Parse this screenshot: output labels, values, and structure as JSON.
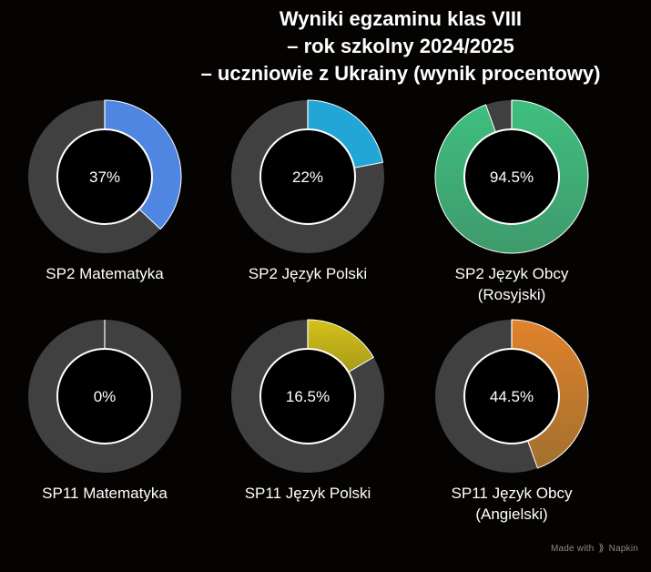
{
  "title": {
    "line1": "Wyniki egzaminu klas VIII",
    "line2": "– rok szkolny 2024/2025",
    "line3": "– uczniowie z Ukrainy (wynik procentowy)"
  },
  "chart_data": {
    "type": "donut",
    "title": "Wyniki egzaminu klas VIII – rok szkolny 2024/2025 – uczniowie z Ukrainy (wynik procentowy)",
    "unit": "%",
    "max": 100,
    "track_color": "#404040",
    "charts": [
      {
        "label_line1": "SP2 Matematyka",
        "label_line2": "",
        "value": 37,
        "value_text": "37%",
        "color": "#4f86e2",
        "color_end": "#4f86e2"
      },
      {
        "label_line1": "SP2 Język Polski",
        "label_line2": "",
        "value": 22,
        "value_text": "22%",
        "color": "#22a6d6",
        "color_end": "#22a6d6"
      },
      {
        "label_line1": "SP2 Język Obcy",
        "label_line2": "(Rosyjski)",
        "value": 94.5,
        "value_text": "94.5%",
        "color": "#3fbf7f",
        "color_end": "#3f9a6c"
      },
      {
        "label_line1": "SP11 Matematyka",
        "label_line2": "",
        "value": 0,
        "value_text": "0%",
        "color": "#4f86e2",
        "color_end": "#4f86e2"
      },
      {
        "label_line1": "SP11 Język Polski",
        "label_line2": "",
        "value": 16.5,
        "value_text": "16.5%",
        "color": "#d4c21a",
        "color_end": "#a89a1a"
      },
      {
        "label_line1": "SP11 Język Obcy",
        "label_line2": "(Angielski)",
        "value": 44.5,
        "value_text": "44.5%",
        "color": "#e0822c",
        "color_end": "#a2702f"
      }
    ]
  },
  "watermark": {
    "prefix": "Made with",
    "icon": "napkin-icon",
    "brand": "Napkin"
  }
}
